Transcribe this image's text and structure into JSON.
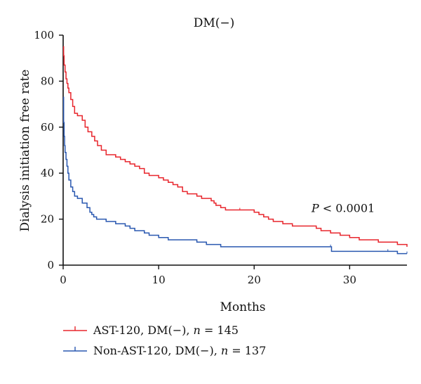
{
  "chart_data": {
    "type": "line",
    "title": "DM(−)",
    "xlabel": "Months",
    "ylabel": "Dialysis initiation free rate",
    "xlim": [
      0,
      36
    ],
    "ylim": [
      0,
      100
    ],
    "x_ticks": [
      0,
      10,
      20,
      30
    ],
    "x_tick_labels": [
      "0",
      "10",
      "20",
      "30"
    ],
    "y_ticks": [
      0,
      20,
      40,
      60,
      80,
      100
    ],
    "y_tick_labels": [
      "0",
      "20",
      "40",
      "60",
      "80",
      "100"
    ],
    "grid": false,
    "legend_position": "bottom-left",
    "annotation": {
      "p_symbol": "P",
      "p_text": " < 0.0001",
      "x": 26,
      "y": 25
    },
    "series": [
      {
        "name": "AST-120, DM(−), n = 145",
        "legend_parts": [
          "AST-120, DM(−), ",
          "n",
          " = 145"
        ],
        "color": "#e8262d",
        "points": [
          [
            0,
            95
          ],
          [
            0.05,
            91
          ],
          [
            0.1,
            87
          ],
          [
            0.2,
            84
          ],
          [
            0.3,
            81
          ],
          [
            0.4,
            79
          ],
          [
            0.5,
            77
          ],
          [
            0.6,
            75
          ],
          [
            0.8,
            72
          ],
          [
            1.0,
            69
          ],
          [
            1.2,
            66
          ],
          [
            1.5,
            65
          ],
          [
            2.0,
            63
          ],
          [
            2.3,
            60
          ],
          [
            2.6,
            58
          ],
          [
            3.0,
            56
          ],
          [
            3.3,
            54
          ],
          [
            3.6,
            52
          ],
          [
            4.0,
            50
          ],
          [
            4.5,
            48
          ],
          [
            5.5,
            47
          ],
          [
            6.0,
            46
          ],
          [
            6.5,
            45
          ],
          [
            7.0,
            44
          ],
          [
            7.5,
            43
          ],
          [
            8.0,
            42
          ],
          [
            8.5,
            40
          ],
          [
            9.0,
            39
          ],
          [
            10.0,
            38
          ],
          [
            10.5,
            37
          ],
          [
            11.0,
            36
          ],
          [
            11.5,
            35
          ],
          [
            12.0,
            34
          ],
          [
            12.5,
            32
          ],
          [
            13.0,
            31
          ],
          [
            14.0,
            30
          ],
          [
            14.5,
            29
          ],
          [
            15.5,
            28
          ],
          [
            15.8,
            27
          ],
          [
            16.0,
            26
          ],
          [
            16.5,
            25
          ],
          [
            17.0,
            24
          ],
          [
            18.5,
            24
          ],
          [
            20.0,
            23
          ],
          [
            20.5,
            22
          ],
          [
            21.0,
            21
          ],
          [
            21.5,
            20
          ],
          [
            22.0,
            19
          ],
          [
            23.0,
            18
          ],
          [
            24.0,
            17
          ],
          [
            26.5,
            16
          ],
          [
            27.0,
            15
          ],
          [
            28.0,
            14
          ],
          [
            29.0,
            13
          ],
          [
            30.0,
            12
          ],
          [
            31.0,
            11
          ],
          [
            33.0,
            10
          ],
          [
            35.0,
            9
          ],
          [
            36.0,
            8
          ]
        ]
      },
      {
        "name": "Non-AST-120, DM(−), n = 137",
        "legend_parts": [
          "Non-AST-120, DM(−), ",
          "n",
          " = 137"
        ],
        "color": "#2a58b0",
        "points": [
          [
            0,
            73
          ],
          [
            0.05,
            62
          ],
          [
            0.1,
            56
          ],
          [
            0.15,
            52
          ],
          [
            0.2,
            49
          ],
          [
            0.3,
            46
          ],
          [
            0.4,
            43
          ],
          [
            0.5,
            40
          ],
          [
            0.6,
            37
          ],
          [
            0.8,
            34
          ],
          [
            1.0,
            32
          ],
          [
            1.2,
            30
          ],
          [
            1.5,
            29
          ],
          [
            2.0,
            27
          ],
          [
            2.5,
            25
          ],
          [
            2.8,
            23
          ],
          [
            3.0,
            22
          ],
          [
            3.2,
            21
          ],
          [
            3.5,
            20
          ],
          [
            4.5,
            19
          ],
          [
            5.5,
            18
          ],
          [
            6.5,
            17
          ],
          [
            7.0,
            16
          ],
          [
            7.5,
            15
          ],
          [
            8.5,
            14
          ],
          [
            9.0,
            13
          ],
          [
            10.0,
            12
          ],
          [
            11.0,
            11
          ],
          [
            14.0,
            10
          ],
          [
            15.0,
            9
          ],
          [
            16.5,
            8
          ],
          [
            28.0,
            8
          ],
          [
            28.1,
            6
          ],
          [
            34.0,
            6
          ],
          [
            35.0,
            5
          ],
          [
            36.0,
            5
          ]
        ]
      }
    ]
  }
}
